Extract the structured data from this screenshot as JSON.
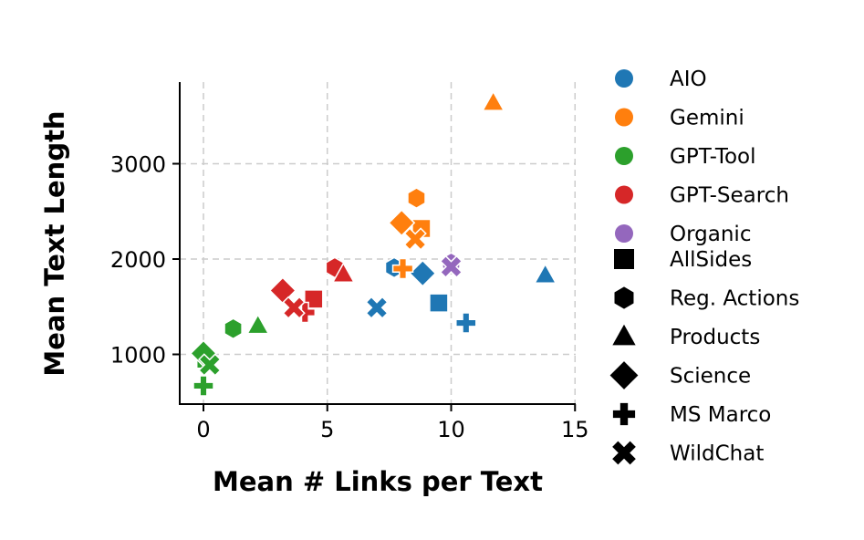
{
  "chart_data": {
    "type": "scatter",
    "xlabel": "Mean # Links per Text",
    "ylabel": "Mean Text Length",
    "xlim": [
      -1,
      15
    ],
    "ylim": [
      450,
      3850
    ],
    "xticks": [
      0,
      5,
      10,
      15
    ],
    "yticks": [
      1000,
      2000,
      3000
    ],
    "grid": true,
    "legend_placement": "right-outside",
    "hue_legend": [
      {
        "name": "AIO",
        "color": "#1f77b4"
      },
      {
        "name": "Gemini",
        "color": "#ff7f0e"
      },
      {
        "name": "GPT-Tool",
        "color": "#2ca02c"
      },
      {
        "name": "GPT-Search",
        "color": "#d62728"
      },
      {
        "name": "Organic",
        "color": "#9467bd"
      }
    ],
    "style_legend": [
      {
        "name": "AllSides",
        "marker": "square"
      },
      {
        "name": "Reg. Actions",
        "marker": "hexagon"
      },
      {
        "name": "Products",
        "marker": "triangle"
      },
      {
        "name": "Science",
        "marker": "diamond"
      },
      {
        "name": "MS Marco",
        "marker": "plus"
      },
      {
        "name": "WildChat",
        "marker": "x"
      }
    ],
    "points": [
      {
        "source": "AIO",
        "dataset": "AllSides",
        "x": 9.5,
        "y": 1540
      },
      {
        "source": "AIO",
        "dataset": "Reg. Actions",
        "x": 7.7,
        "y": 1910
      },
      {
        "source": "AIO",
        "dataset": "Products",
        "x": 13.8,
        "y": 1830
      },
      {
        "source": "AIO",
        "dataset": "Science",
        "x": 8.85,
        "y": 1850
      },
      {
        "source": "AIO",
        "dataset": "MS Marco",
        "x": 10.6,
        "y": 1330
      },
      {
        "source": "AIO",
        "dataset": "WildChat",
        "x": 7.0,
        "y": 1490
      },
      {
        "source": "Gemini",
        "dataset": "AllSides",
        "x": 8.8,
        "y": 2320
      },
      {
        "source": "Gemini",
        "dataset": "Reg. Actions",
        "x": 8.6,
        "y": 2640
      },
      {
        "source": "Gemini",
        "dataset": "Products",
        "x": 11.7,
        "y": 3640
      },
      {
        "source": "Gemini",
        "dataset": "Science",
        "x": 8.0,
        "y": 2380
      },
      {
        "source": "Gemini",
        "dataset": "MS Marco",
        "x": 8.05,
        "y": 1900
      },
      {
        "source": "Gemini",
        "dataset": "WildChat",
        "x": 8.55,
        "y": 2210
      },
      {
        "source": "GPT-Tool",
        "dataset": "AllSides",
        "x": 0.1,
        "y": 950
      },
      {
        "source": "GPT-Tool",
        "dataset": "Reg. Actions",
        "x": 1.2,
        "y": 1270
      },
      {
        "source": "GPT-Tool",
        "dataset": "Products",
        "x": 2.2,
        "y": 1300
      },
      {
        "source": "GPT-Tool",
        "dataset": "Science",
        "x": 0.0,
        "y": 1010
      },
      {
        "source": "GPT-Tool",
        "dataset": "MS Marco",
        "x": 0.0,
        "y": 670
      },
      {
        "source": "GPT-Tool",
        "dataset": "WildChat",
        "x": 0.25,
        "y": 890
      },
      {
        "source": "GPT-Search",
        "dataset": "AllSides",
        "x": 4.45,
        "y": 1580
      },
      {
        "source": "GPT-Search",
        "dataset": "Reg. Actions",
        "x": 5.3,
        "y": 1910
      },
      {
        "source": "GPT-Search",
        "dataset": "Products",
        "x": 5.65,
        "y": 1840
      },
      {
        "source": "GPT-Search",
        "dataset": "Science",
        "x": 3.2,
        "y": 1670
      },
      {
        "source": "GPT-Search",
        "dataset": "MS Marco",
        "x": 4.1,
        "y": 1440
      },
      {
        "source": "GPT-Search",
        "dataset": "WildChat",
        "x": 3.65,
        "y": 1490
      },
      {
        "source": "Organic",
        "dataset": "Reg. Actions",
        "x": 10.0,
        "y": 1960
      },
      {
        "source": "Organic",
        "dataset": "WildChat",
        "x": 10.0,
        "y": 1920
      }
    ]
  }
}
